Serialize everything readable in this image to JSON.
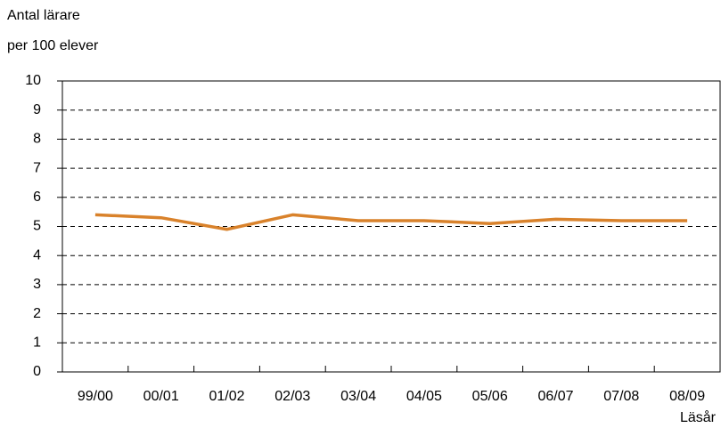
{
  "chart_data": {
    "type": "line",
    "ylabel": [
      "Antal lärare",
      "per 100 elever"
    ],
    "xlabel": "Läsår",
    "categories": [
      "99/00",
      "00/01",
      "01/02",
      "02/03",
      "03/04",
      "04/05",
      "05/06",
      "06/07",
      "07/08",
      "08/09"
    ],
    "series": [
      {
        "color": "#d9822b",
        "values": [
          5.4,
          5.3,
          4.9,
          5.4,
          5.2,
          5.2,
          5.1,
          5.25,
          5.2,
          5.2
        ]
      }
    ],
    "ylim": [
      0,
      10
    ],
    "yticks": [
      0,
      1,
      2,
      3,
      4,
      5,
      6,
      7,
      8,
      9,
      10
    ],
    "grid": true
  }
}
